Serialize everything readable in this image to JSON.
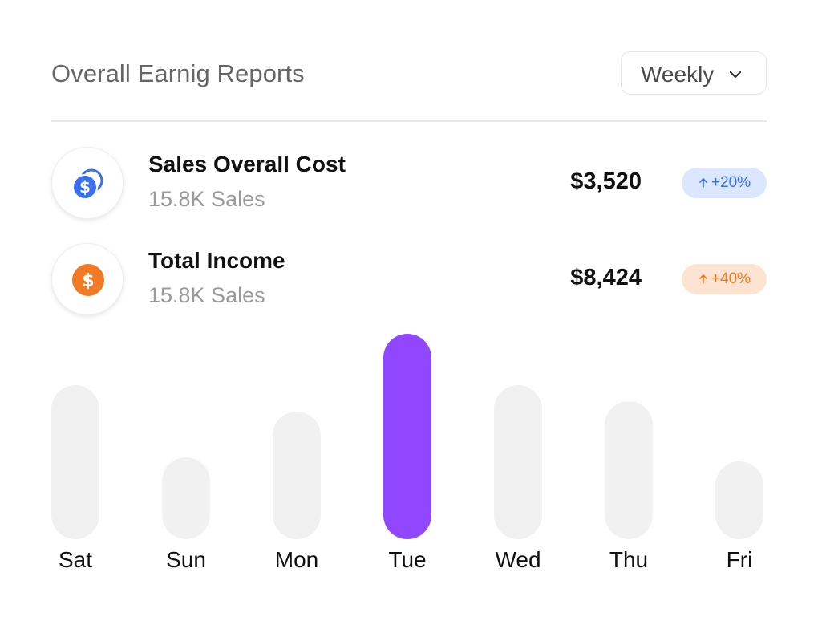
{
  "header": {
    "title": "Overall Earnig Reports",
    "period": "Weekly"
  },
  "metrics": [
    {
      "name": "Sales Overall Cost",
      "sub": "15.8K Sales",
      "amount": "$3,520",
      "change": "+20%",
      "icon": "coins-dollar-icon",
      "color": "#3a6ff0"
    },
    {
      "name": "Total Income",
      "sub": "15.8K Sales",
      "amount": "$8,424",
      "change": "+40%",
      "icon": "dollar-circle-icon",
      "color": "#f07a26"
    }
  ],
  "chart_data": {
    "type": "bar",
    "categories": [
      "Sat",
      "Sun",
      "Mon",
      "Tue",
      "Wed",
      "Thu",
      "Fri"
    ],
    "values": [
      75,
      40,
      62,
      100,
      75,
      67,
      38
    ],
    "highlighted": "Tue",
    "colors": {
      "bar": "#f1f1f1",
      "highlight": "#9146ff"
    }
  }
}
